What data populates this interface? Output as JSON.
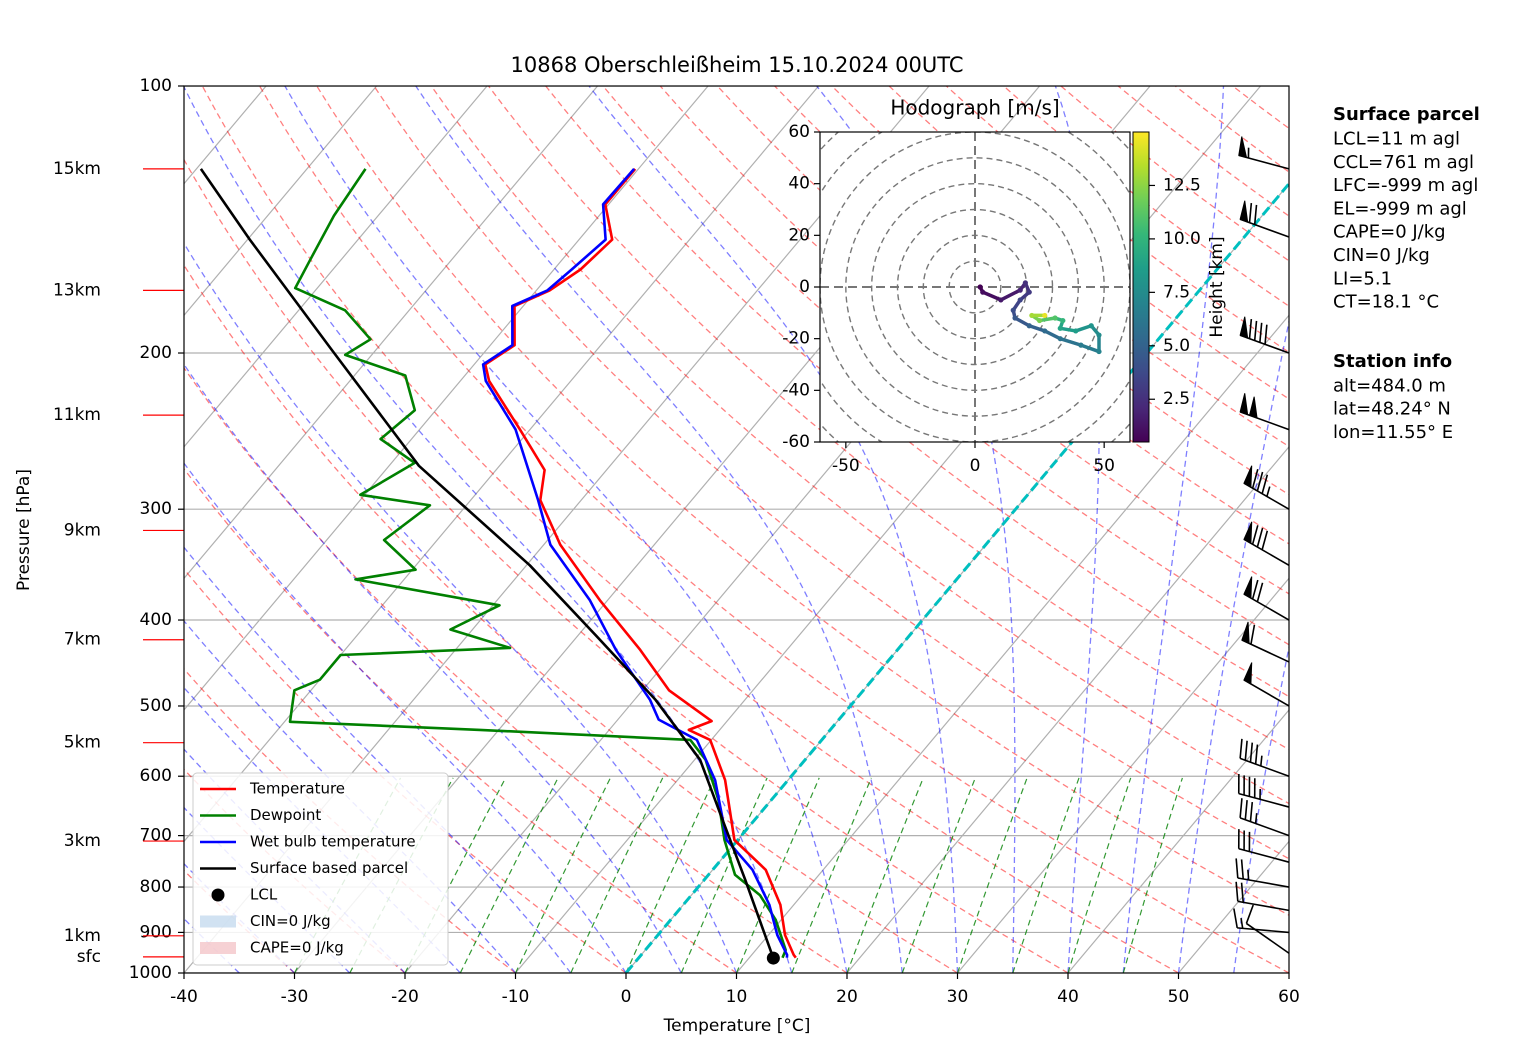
{
  "chart_data": [
    {
      "type": "skewt",
      "title": "10868 Oberschleißheim 15.10.2024 00UTC",
      "xlabel": "Temperature [°C]",
      "ylabel": "Pressure [hPa]",
      "xlim": [
        -40,
        60
      ],
      "ylim": [
        1000,
        100
      ],
      "yscale": "log",
      "xticks": [
        -40,
        -30,
        -20,
        -10,
        0,
        10,
        20,
        30,
        40,
        50,
        60
      ],
      "yticks": [
        100,
        200,
        300,
        400,
        500,
        600,
        700,
        800,
        900,
        1000
      ],
      "grid": true,
      "legend": "lower left",
      "series": [
        {
          "name": "Temperature",
          "color": "#ff0000",
          "pressure": [
            961,
            954,
            906,
            838,
            765,
            708,
            655,
            606,
            546,
            532,
            520,
            480,
            432,
            380,
            329,
            293,
            271,
            244,
            215,
            206,
            196,
            177,
            170,
            161,
            149,
            136,
            124
          ],
          "temperature": [
            14.2,
            13.8,
            11.5,
            8.8,
            4.8,
            -0.3,
            -3.0,
            -5.7,
            -10.1,
            -12.8,
            -11.4,
            -17.6,
            -23.3,
            -30.7,
            -38.5,
            -43.7,
            -45.6,
            -50.9,
            -57.4,
            -59.0,
            -57.8,
            -60.8,
            -58.8,
            -57.6,
            -57.0,
            -60.3,
            -60.3
          ]
        },
        {
          "name": "Dewpoint",
          "color": "#008000",
          "pressure": [
            961,
            942,
            871,
            817,
            775,
            708,
            638,
            575,
            546,
            532,
            521,
            480,
            467,
            438,
            430,
            410,
            385,
            360,
            351,
            325,
            297,
            289,
            266,
            250,
            232,
            212,
            201,
            193,
            179,
            169,
            157,
            140,
            124
          ],
          "temperature": [
            13.0,
            12.7,
            9.5,
            6.2,
            2.4,
            -1.2,
            -4.8,
            -9.0,
            -11.9,
            -31.7,
            -49.5,
            -51.5,
            -50.0,
            -50.0,
            -35.2,
            -42.0,
            -39.4,
            -54.4,
            -49.7,
            -54.8,
            -53.3,
            -60.4,
            -57.9,
            -62.8,
            -61.9,
            -65.4,
            -72.4,
            -71.3,
            -75.8,
            -82.0,
            -82.8,
            -84.0,
            -84.7
          ]
        },
        {
          "name": "Wet bulb temperature",
          "color": "#0000ff",
          "pressure": [
            961,
            954,
            906,
            838,
            765,
            708,
            655,
            606,
            546,
            518,
            492,
            432,
            380,
            329,
            293,
            244,
            215,
            206,
            196,
            177,
            170,
            161,
            149,
            136,
            124
          ],
          "temperature": [
            13.4,
            13.2,
            10.8,
            7.8,
            3.6,
            -1.0,
            -3.8,
            -6.6,
            -11.3,
            -16.3,
            -18.6,
            -25.5,
            -31.6,
            -39.4,
            -43.9,
            -51.3,
            -57.7,
            -59.2,
            -58.0,
            -61.0,
            -59.0,
            -58.4,
            -57.6,
            -60.5,
            -60.4
          ]
        },
        {
          "name": "Surface based parcel",
          "color": "#000000",
          "pressure": [
            962,
            785,
            672,
            575,
            492,
            421,
            347,
            268,
            198,
            149,
            124
          ],
          "temperature": [
            12.2,
            3.7,
            -2.9,
            -9.5,
            -18.1,
            -27.7,
            -39.7,
            -57.3,
            -74.1,
            -89.8,
            -99.6
          ]
        }
      ],
      "lcl": {
        "name": "LCL",
        "color": "#000000",
        "pressure": 962,
        "temperature": 12.2
      },
      "shading": [
        {
          "name": "CIN=0 J/kg",
          "color": "#c6dbef"
        },
        {
          "name": "CAPE=0 J/kg",
          "color": "#f4c6c9"
        }
      ],
      "freezing_isotherm": {
        "value": 0,
        "color": "#00bfbf"
      },
      "height_label_color": "#ff0000",
      "height_labels": [
        {
          "label": "15km",
          "pressure": 124
        },
        {
          "label": "13km",
          "pressure": 170
        },
        {
          "label": "11km",
          "pressure": 235
        },
        {
          "label": "9km",
          "pressure": 317
        },
        {
          "label": "7km",
          "pressure": 421
        },
        {
          "label": "5km",
          "pressure": 550
        },
        {
          "label": "3km",
          "pressure": 710
        },
        {
          "label": "1km",
          "pressure": 908
        },
        {
          "label": "sfc",
          "pressure": 959
        }
      ],
      "wind": {
        "pressure": [
          124,
          148,
          200,
          244,
          300,
          347,
          400,
          446,
          500,
          600,
          650,
          700,
          750,
          800,
          850,
          900,
          950
        ],
        "speed": [
          55,
          70,
          90,
          100,
          85,
          80,
          70,
          60,
          50,
          45,
          45,
          35,
          30,
          25,
          20,
          15,
          10
        ],
        "direction": [
          285,
          290,
          290,
          290,
          300,
          300,
          300,
          295,
          300,
          290,
          285,
          290,
          285,
          280,
          280,
          275,
          305
        ]
      }
    },
    {
      "type": "hodograph",
      "title": "Hodograph [m/s]",
      "xlim": [
        -60,
        60
      ],
      "ylim": [
        -60,
        60
      ],
      "xticks": [
        -50,
        0,
        50
      ],
      "yticks": [
        -60,
        -40,
        -20,
        0,
        20,
        40,
        60
      ],
      "u": [
        2,
        3,
        10,
        17.5,
        19.5,
        21,
        17.5,
        14.8,
        15.5,
        21,
        27,
        33,
        41,
        48,
        48,
        45,
        39,
        33,
        34,
        31,
        25,
        22,
        27
      ],
      "v": [
        0,
        -2,
        -5,
        -1.2,
        1.6,
        -2,
        -5,
        -9,
        -12,
        -15,
        -17,
        -20,
        -22.5,
        -25,
        -18.6,
        -15,
        -17,
        -16,
        -13,
        -12,
        -13,
        -11,
        -11
      ],
      "height": [
        0.5,
        1.0,
        1.5,
        2.0,
        2.5,
        3.0,
        3.5,
        4.0,
        4.5,
        5.0,
        5.5,
        6.0,
        6.5,
        7.0,
        7.5,
        8.0,
        8.5,
        9.0,
        10.0,
        11.0,
        12.0,
        13.0,
        14.5
      ],
      "colorbar": {
        "label": "Height [km]",
        "lim": [
          0.5,
          15
        ],
        "ticks": [
          2.5,
          {
            "value": 5,
            "label": "5.0"
          },
          7.5,
          {
            "value": 10,
            "label": "10.0"
          },
          12.5
        ]
      }
    }
  ],
  "info_panel": [
    {
      "title": "Surface parcel",
      "lines": [
        "LCL=11 m agl",
        "CCL=761 m agl",
        "LFC=-999 m agl",
        "EL=-999 m agl",
        "CAPE=0 J/kg",
        "CIN=0 J/kg",
        "LI=5.1",
        "CT=18.1 °C"
      ]
    },
    {
      "title": "Station info",
      "lines": [
        "alt=484.0 m",
        "lat=48.24° N",
        "lon=11.55° E"
      ]
    }
  ]
}
